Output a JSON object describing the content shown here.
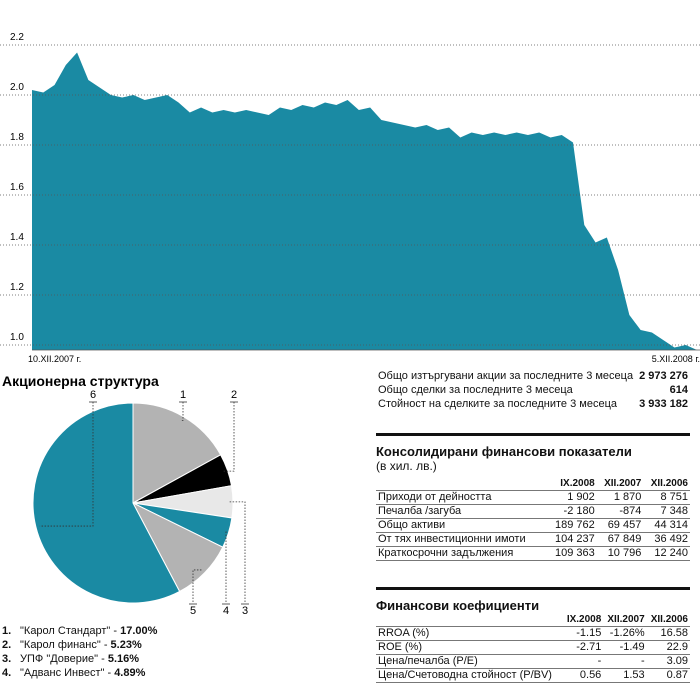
{
  "chart_data": [
    {
      "type": "area",
      "color": "#1a8aa3",
      "categories": [
        "10.XII.2007 г.",
        null,
        null,
        null,
        null,
        null,
        null,
        null,
        null,
        null,
        null,
        null,
        null,
        null,
        null,
        null,
        null,
        null,
        null,
        null,
        null,
        null,
        null,
        null,
        null,
        null,
        null,
        null,
        null,
        null,
        null,
        null,
        null,
        null,
        null,
        null,
        null,
        null,
        null,
        null,
        null,
        null,
        null,
        null,
        null,
        null,
        null,
        null,
        null,
        null,
        null,
        null,
        null,
        null,
        null,
        null,
        null,
        null,
        null,
        "5.XII.2008 г."
      ],
      "values": [
        2.02,
        2.01,
        2.04,
        2.12,
        2.17,
        2.06,
        2.03,
        2.0,
        1.99,
        2.0,
        1.98,
        1.99,
        2.0,
        1.97,
        1.93,
        1.95,
        1.93,
        1.94,
        1.93,
        1.94,
        1.93,
        1.92,
        1.95,
        1.94,
        1.96,
        1.95,
        1.97,
        1.96,
        1.98,
        1.94,
        1.95,
        1.9,
        1.89,
        1.88,
        1.87,
        1.88,
        1.86,
        1.87,
        1.83,
        1.85,
        1.84,
        1.85,
        1.84,
        1.85,
        1.84,
        1.85,
        1.83,
        1.84,
        1.81,
        1.48,
        1.41,
        1.43,
        1.3,
        1.12,
        1.06,
        1.05,
        1.02,
        0.99,
        1.0,
        0.98
      ],
      "ylim": [
        0.98,
        2.38
      ],
      "yticks": [
        {
          "value": 1,
          "label": "1.0"
        },
        1.2,
        1.4,
        1.6,
        1.8,
        {
          "value": 2,
          "label": "2.0"
        },
        2.2
      ],
      "grid": true
    },
    {
      "type": "pie",
      "title": "Акционерна структура",
      "labels": [
        "1",
        "2",
        "3",
        "4",
        "5",
        "6"
      ],
      "values": [
        17.0,
        5.23,
        5.16,
        4.89,
        10.0,
        57.72
      ],
      "value_labels": [
        "17.00%",
        "5.23%",
        "5.16%",
        "4.89%",
        null,
        null
      ],
      "colors": [
        "#b3b3b3",
        "#000000",
        "#e8e8e8",
        "#1a8aa3",
        "#b3b3b3",
        "#1a8aa3"
      ],
      "legend_numbers": [
        "1.",
        "2.",
        "3.",
        "4."
      ],
      "legend_names": [
        "\"Карол Стандарт\" -",
        "\"Карол финанс\" -",
        "УПФ \"Доверие\" -",
        "\"Адванс Инвест\" -"
      ]
    }
  ],
  "trading": {
    "rows": [
      [
        "Общо изтъргувани акции за последните 3 месеца",
        "2 973 276"
      ],
      [
        "Общо сделки за последните 3 месеца",
        "614"
      ],
      [
        "Стойност на сделките за последните 3 месеца",
        "3 933 182"
      ]
    ]
  },
  "financials": {
    "title": "Консолидирани финансови показатели",
    "subtitle": "(в хил. лв.)",
    "columns": [
      "IX.2008",
      "XII.2007",
      "XII.2006"
    ],
    "rows": [
      [
        "Приходи от дейността",
        "1 902",
        "1 870",
        "8 751"
      ],
      [
        "Печалба /загуба",
        "-2 180",
        "-874",
        "7 348"
      ],
      [
        "Общо активи",
        "189 762",
        "69 457",
        "44 314"
      ],
      [
        "От тях инвестиционни имоти",
        "104 237",
        "67 849",
        "36 492"
      ],
      [
        "Краткосрочни задължения",
        "109 363",
        "10 796",
        "12 240"
      ]
    ]
  },
  "ratios": {
    "title": "Финансови коефициенти",
    "columns": [
      "IX.2008",
      "XII.2007",
      "XII.2006"
    ],
    "rows": [
      [
        "RROA (%)",
        "-1.15",
        "-1.26%",
        "16.58"
      ],
      [
        "ROE (%)",
        "-2.71",
        "-1.49",
        "22.9"
      ],
      [
        "Цена/печалба (P/E)",
        "-",
        "-",
        "3.09"
      ],
      [
        "Цена/Счетоводна стойност (P/BV)",
        "0.56",
        "1.53",
        "0.87"
      ]
    ]
  }
}
